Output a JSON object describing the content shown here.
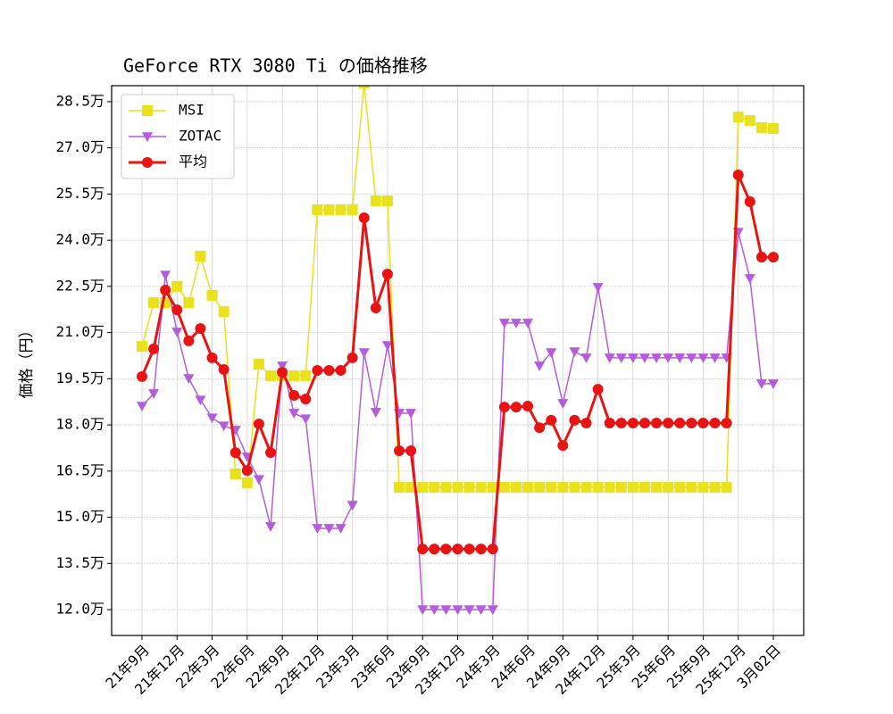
{
  "chart_data": {
    "type": "line",
    "title": "GeForce RTX 3080 Ti の価格推移",
    "y_label": "価格（円）",
    "categories": [
      "21年9月",
      null,
      null,
      "21年12月",
      null,
      null,
      "22年3月",
      null,
      null,
      "22年6月",
      null,
      null,
      "22年9月",
      null,
      null,
      "22年12月",
      null,
      null,
      "23年3月",
      null,
      null,
      "23年6月",
      null,
      null,
      "23年9月",
      null,
      null,
      "23年12月",
      null,
      null,
      "24年3月",
      null,
      null,
      "24年6月",
      null,
      null,
      "24年9月",
      null,
      null,
      "24年12月",
      null,
      null,
      "25年3月",
      null,
      null,
      "25年6月",
      null,
      null,
      "25年9月",
      null,
      null,
      "25年12月",
      null,
      null,
      "3月02日"
    ],
    "series": [
      {
        "name": "MSI",
        "color": "#e8e11c",
        "marker": "square",
        "values": [
          20.55,
          21.97,
          21.97,
          22.5,
          21.97,
          23.48,
          22.21,
          21.68,
          16.41,
          16.12,
          19.97,
          19.6,
          19.6,
          19.6,
          19.6,
          24.99,
          24.99,
          24.99,
          24.99,
          29.1,
          25.28,
          25.28,
          15.97,
          15.97,
          15.97,
          15.97,
          15.97,
          15.97,
          15.97,
          15.97,
          15.97,
          15.97,
          15.97,
          15.97,
          15.97,
          15.97,
          15.97,
          15.97,
          15.97,
          15.97,
          15.97,
          15.97,
          15.97,
          15.97,
          15.97,
          15.97,
          15.97,
          15.97,
          15.97,
          15.97,
          15.97,
          28.0,
          27.89,
          27.66,
          27.63
        ]
      },
      {
        "name": "ZOTAC",
        "color": "#b45cdb",
        "marker": "triangle_down",
        "values": [
          18.61,
          19.02,
          22.87,
          21.02,
          19.51,
          18.81,
          18.23,
          17.97,
          17.83,
          16.96,
          16.23,
          14.7,
          19.92,
          18.38,
          18.2,
          14.64,
          14.64,
          14.64,
          15.39,
          20.35,
          18.41,
          20.58,
          18.38,
          18.38,
          12,
          12,
          12,
          12,
          12,
          12,
          12,
          21.31,
          21.31,
          21.31,
          19.92,
          20.35,
          18.7,
          20.38,
          20.18,
          22.47,
          20.18,
          20.18,
          20.18,
          20.18,
          20.18,
          20.18,
          20.18,
          20.18,
          20.18,
          20.18,
          20.18,
          24.26,
          22.76,
          19.34,
          19.34
        ]
      },
      {
        "name": "平均",
        "color": "#e81414",
        "marker": "circle",
        "values": [
          19.57,
          20.47,
          22.38,
          21.74,
          20.73,
          21.13,
          20.18,
          19.8,
          17.1,
          16.52,
          18.03,
          17.1,
          19.71,
          18.96,
          18.84,
          19.77,
          19.77,
          19.77,
          20.18,
          24.73,
          21.8,
          22.9,
          17.16,
          17.16,
          13.97,
          13.97,
          13.97,
          13.97,
          13.97,
          13.97,
          13.97,
          18.58,
          18.58,
          18.61,
          17.91,
          18.15,
          17.33,
          18.15,
          18.06,
          19.16,
          18.06,
          18.06,
          18.06,
          18.06,
          18.06,
          18.06,
          18.06,
          18.06,
          18.06,
          18.06,
          18.06,
          26.12,
          25.25,
          23.45,
          23.45
        ]
      }
    ],
    "ylim": [
      11.16,
      29.02
    ],
    "yticks": [
      {
        "value": 12,
        "label": "12.0万"
      },
      {
        "value": 13.5,
        "label": "13.5万"
      },
      {
        "value": 15,
        "label": "15.0万"
      },
      {
        "value": 16.5,
        "label": "16.5万"
      },
      {
        "value": 18,
        "label": "18.0万"
      },
      {
        "value": 19.5,
        "label": "19.5万"
      },
      {
        "value": 21,
        "label": "21.0万"
      },
      {
        "value": 22.5,
        "label": "22.5万"
      },
      {
        "value": 24,
        "label": "24.0万"
      },
      {
        "value": 25.5,
        "label": "25.5万"
      },
      {
        "value": 27,
        "label": "27.0万"
      },
      {
        "value": 28.5,
        "label": "28.5万"
      }
    ],
    "grid": true,
    "legend": "upper left"
  }
}
